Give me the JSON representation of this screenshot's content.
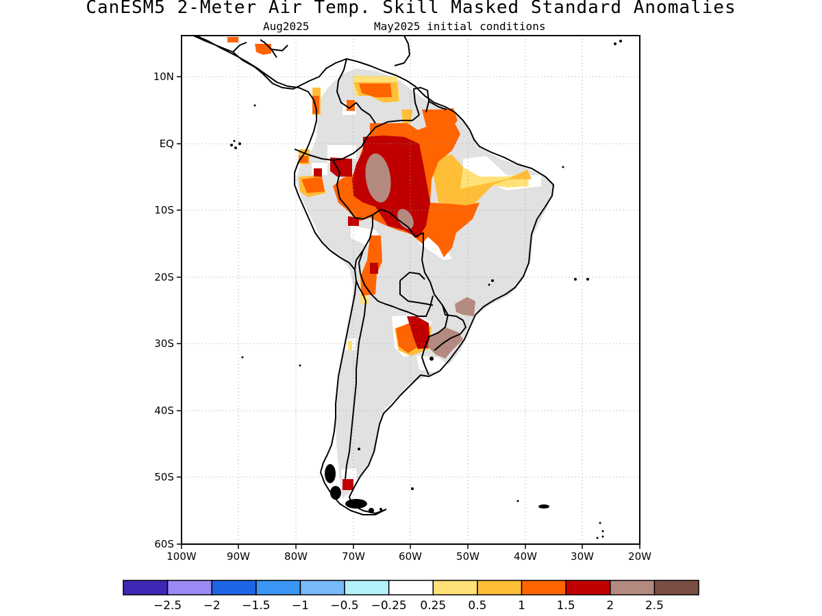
{
  "map": {
    "title": "CanESM5 2-Meter Air Temp. Skill Masked Standard Anomalies",
    "valid_month": "Aug2025",
    "init_label": "May2025 initial conditions",
    "lat_ticks": [
      "10N",
      "EQ",
      "10S",
      "20S",
      "30S",
      "40S",
      "50S",
      "60S"
    ],
    "lon_ticks": [
      "100W",
      "90W",
      "80W",
      "70W",
      "60W",
      "50W",
      "40W",
      "30W",
      "20W"
    ],
    "gridlines": true
  },
  "colorbar": {
    "colors": [
      "#3c28b4",
      "#9b8af5",
      "#1e64e6",
      "#3c96f5",
      "#78b9fa",
      "#b4f0fa",
      "#ffffff",
      "#ffe178",
      "#ffbe37",
      "#ff6400",
      "#c00000",
      "#b48a80",
      "#7a4e42"
    ],
    "labels": [
      "-2.5",
      "-2",
      "-1.5",
      "-1",
      "-0.5",
      "-0.25",
      "0.25",
      "0.5",
      "1",
      "1.5",
      "2",
      "2.5"
    ]
  },
  "colors": {
    "masked": "#e1e1e1",
    "a0_5": "#ffe178",
    "a1": "#ffbe37",
    "a1_5": "#ff6400",
    "a2": "#c00000",
    "a2_5": "#b48a80"
  }
}
